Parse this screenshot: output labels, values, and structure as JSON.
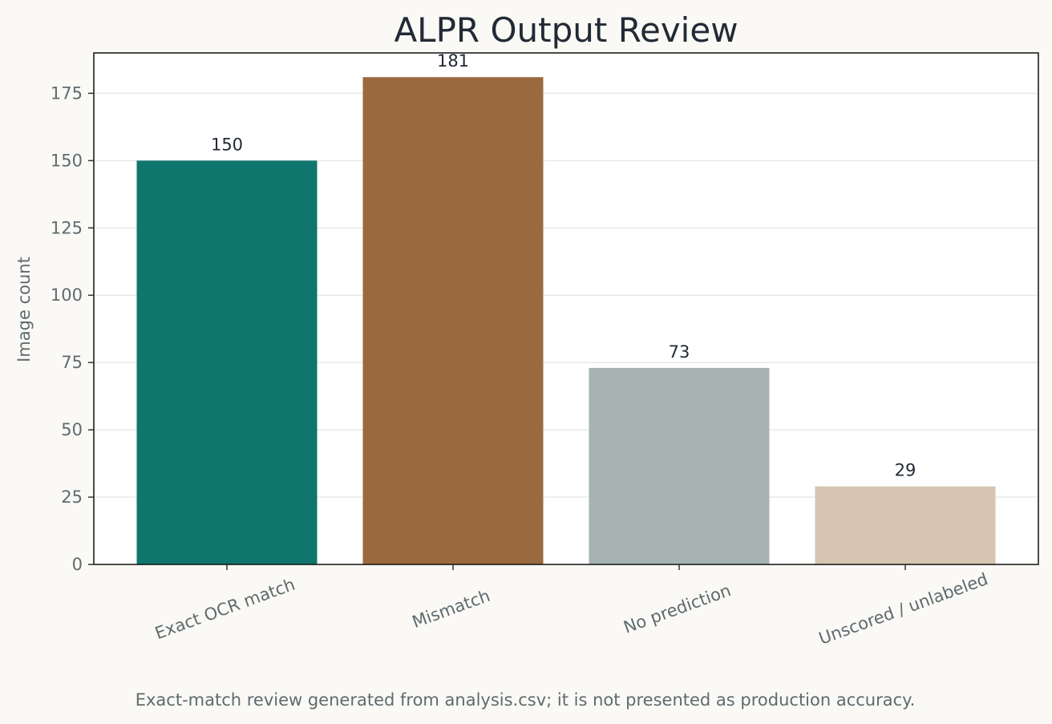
{
  "chart_data": {
    "type": "bar",
    "title": "ALPR Output Review",
    "xlabel": "",
    "ylabel": "Image count",
    "categories": [
      "Exact OCR match",
      "Mismatch",
      "No prediction",
      "Unscored / unlabeled"
    ],
    "values": [
      150,
      181,
      73,
      29
    ],
    "value_labels": [
      "150",
      "181",
      "73",
      "29"
    ],
    "colors": [
      "#10756d",
      "#9a6a3e",
      "#a6b3b1",
      "#d6c6b1"
    ],
    "ylim": [
      0,
      190
    ],
    "yticks": [
      0,
      25,
      50,
      75,
      100,
      125,
      150,
      175
    ],
    "grid": true,
    "legend": "none"
  },
  "footnote": "Exact-match review generated from analysis.csv; it is not presented as production accuracy."
}
